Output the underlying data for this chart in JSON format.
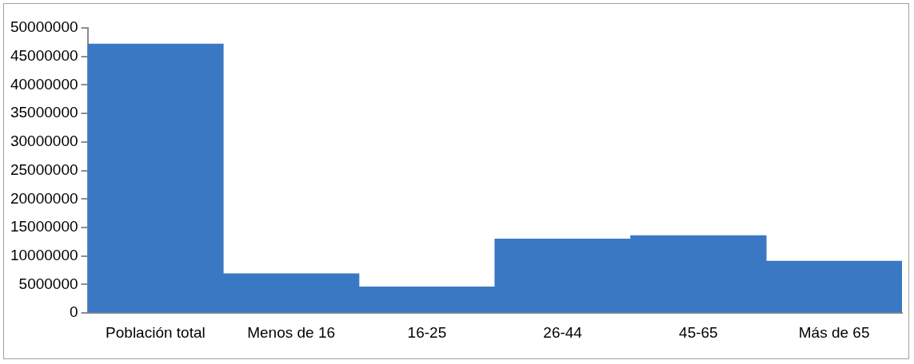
{
  "chart_data": {
    "type": "bar",
    "categories": [
      "Población total",
      "Menos de 16",
      "16-25",
      "26-44",
      "45-65",
      "Más de 65"
    ],
    "values": [
      47200000,
      6900000,
      4600000,
      13000000,
      13600000,
      9100000
    ],
    "color": "#3a78c4",
    "ylim": [
      0,
      50000000
    ],
    "yticks": [
      0,
      5000000,
      10000000,
      15000000,
      20000000,
      25000000,
      30000000,
      35000000,
      40000000,
      45000000,
      50000000
    ],
    "grid": false,
    "legend": false
  }
}
